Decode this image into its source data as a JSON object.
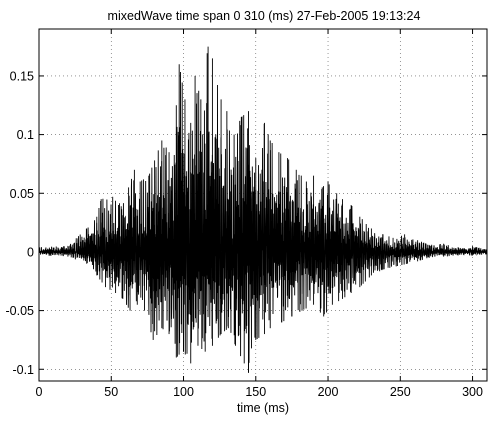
{
  "chart_data": {
    "type": "line",
    "title": "mixedWave time span 0 310 (ms) 27-Feb-2005 19:13:24",
    "xlabel": "time (ms)",
    "ylabel": "",
    "xlim": [
      0,
      310
    ],
    "ylim": [
      -0.11,
      0.19
    ],
    "x_ticks": [
      0,
      50,
      100,
      150,
      200,
      250,
      300
    ],
    "x_tick_labels": [
      "0",
      "50",
      "100",
      "150",
      "200",
      "250",
      "300"
    ],
    "y_ticks": [
      -0.1,
      -0.05,
      0,
      0.05,
      0.1,
      0.15
    ],
    "y_tick_labels": [
      "-0.1",
      "-0.05",
      "0",
      "0.05",
      "0.1",
      "0.15"
    ],
    "grid": true,
    "grid_style": "dotted",
    "line_color": "#000000",
    "series": [
      {
        "description": "approximate positive envelope / peaks of the waveform (ms, value)",
        "peaks_pos": [
          [
            0,
            0.004
          ],
          [
            20,
            0.005
          ],
          [
            33,
            0.02
          ],
          [
            40,
            0.03
          ],
          [
            43,
            0.045
          ],
          [
            51,
            0.047
          ],
          [
            55,
            0.04
          ],
          [
            62,
            0.055
          ],
          [
            66,
            0.07
          ],
          [
            70,
            0.06
          ],
          [
            76,
            0.065
          ],
          [
            80,
            0.078
          ],
          [
            85,
            0.095
          ],
          [
            90,
            0.085
          ],
          [
            95,
            0.125
          ],
          [
            97,
            0.16
          ],
          [
            101,
            0.13
          ],
          [
            105,
            0.11
          ],
          [
            108,
            0.15
          ],
          [
            112,
            0.13
          ],
          [
            117,
            0.175
          ],
          [
            120,
            0.165
          ],
          [
            126,
            0.13
          ],
          [
            130,
            0.12
          ],
          [
            135,
            0.1
          ],
          [
            140,
            0.115
          ],
          [
            145,
            0.12
          ],
          [
            150,
            0.08
          ],
          [
            156,
            0.11
          ],
          [
            160,
            0.095
          ],
          [
            166,
            0.085
          ],
          [
            172,
            0.08
          ],
          [
            178,
            0.07
          ],
          [
            185,
            0.06
          ],
          [
            190,
            0.065
          ],
          [
            196,
            0.055
          ],
          [
            200,
            0.06
          ],
          [
            206,
            0.05
          ],
          [
            210,
            0.045
          ],
          [
            216,
            0.04
          ],
          [
            222,
            0.03
          ],
          [
            230,
            0.02
          ],
          [
            238,
            0.015
          ],
          [
            245,
            0.012
          ],
          [
            253,
            0.015
          ],
          [
            262,
            0.01
          ],
          [
            270,
            0.006
          ],
          [
            280,
            0.007
          ],
          [
            290,
            0.004
          ],
          [
            300,
            0.005
          ],
          [
            310,
            0.003
          ]
        ],
        "peaks_neg": [
          [
            0,
            -0.003
          ],
          [
            20,
            -0.004
          ],
          [
            33,
            -0.01
          ],
          [
            40,
            -0.02
          ],
          [
            46,
            -0.03
          ],
          [
            53,
            -0.035
          ],
          [
            58,
            -0.04
          ],
          [
            63,
            -0.05
          ],
          [
            68,
            -0.045
          ],
          [
            73,
            -0.05
          ],
          [
            79,
            -0.075
          ],
          [
            85,
            -0.065
          ],
          [
            90,
            -0.07
          ],
          [
            95,
            -0.09
          ],
          [
            100,
            -0.085
          ],
          [
            105,
            -0.095
          ],
          [
            110,
            -0.08
          ],
          [
            115,
            -0.085
          ],
          [
            120,
            -0.08
          ],
          [
            126,
            -0.07
          ],
          [
            131,
            -0.065
          ],
          [
            136,
            -0.08
          ],
          [
            142,
            -0.095
          ],
          [
            145,
            -0.103
          ],
          [
            150,
            -0.075
          ],
          [
            156,
            -0.07
          ],
          [
            160,
            -0.065
          ],
          [
            168,
            -0.06
          ],
          [
            175,
            -0.055
          ],
          [
            182,
            -0.05
          ],
          [
            190,
            -0.045
          ],
          [
            197,
            -0.055
          ],
          [
            203,
            -0.045
          ],
          [
            210,
            -0.04
          ],
          [
            216,
            -0.035
          ],
          [
            222,
            -0.03
          ],
          [
            230,
            -0.02
          ],
          [
            238,
            -0.015
          ],
          [
            248,
            -0.012
          ],
          [
            255,
            -0.01
          ],
          [
            262,
            -0.008
          ],
          [
            270,
            -0.005
          ],
          [
            280,
            -0.004
          ],
          [
            290,
            -0.003
          ],
          [
            300,
            -0.003
          ],
          [
            310,
            -0.002
          ]
        ]
      }
    ]
  }
}
